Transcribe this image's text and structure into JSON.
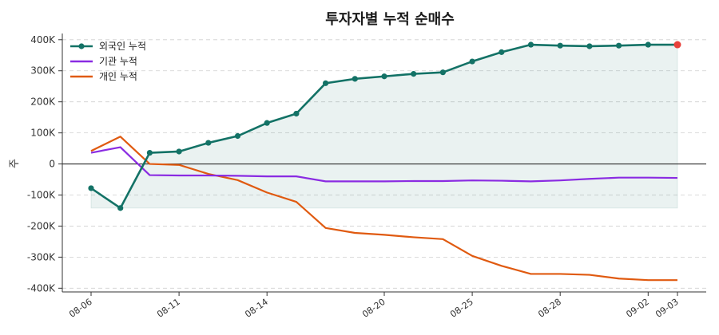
{
  "chart_data": {
    "type": "line",
    "title": "투자자별 누적 순매수",
    "xlabel": "",
    "ylabel": "주",
    "x": [
      "08-06",
      "08-07",
      "08-08",
      "08-11",
      "08-12",
      "08-13",
      "08-14",
      "08-15",
      "08-18",
      "08-19",
      "08-20",
      "08-21",
      "08-22",
      "08-25",
      "08-26",
      "08-27",
      "08-28",
      "08-29",
      "09-01",
      "09-02",
      "09-03"
    ],
    "x_tick_labels": [
      "08-06",
      "08-11",
      "08-14",
      "08-20",
      "08-25",
      "08-28",
      "09-02",
      "09-03"
    ],
    "y_tick_labels": [
      "400K",
      "300K",
      "200K",
      "100K",
      "0",
      "-100K",
      "-200K",
      "-300K",
      "-400K"
    ],
    "ylim": [
      -412000,
      420000
    ],
    "grid": "horizontal dashed",
    "legend_position": "top-left",
    "series": [
      {
        "name": "외국인 누적",
        "color": "#137266",
        "markers": true,
        "area_fill": true,
        "last_point_color": "#e8413b",
        "values": [
          -78000,
          -142000,
          36000,
          40000,
          68000,
          90000,
          132000,
          162000,
          260000,
          274000,
          282000,
          290000,
          295000,
          330000,
          360000,
          384000,
          381000,
          379000,
          381000,
          384000,
          384000
        ]
      },
      {
        "name": "기관 누적",
        "color": "#8a2be2",
        "markers": false,
        "values": [
          36000,
          54000,
          -36000,
          -37000,
          -37000,
          -38000,
          -40000,
          -40000,
          -56000,
          -56000,
          -56000,
          -55000,
          -55000,
          -53000,
          -54000,
          -56000,
          -53000,
          -48000,
          -44000,
          -44000,
          -45000
        ]
      },
      {
        "name": "개인 누적",
        "color": "#e05a10",
        "markers": false,
        "values": [
          42000,
          88000,
          0,
          -3000,
          -32000,
          -52000,
          -92000,
          -122000,
          -206000,
          -222000,
          -228000,
          -236000,
          -242000,
          -296000,
          -328000,
          -354000,
          -354000,
          -357000,
          -369000,
          -374000,
          -374000
        ]
      }
    ]
  }
}
